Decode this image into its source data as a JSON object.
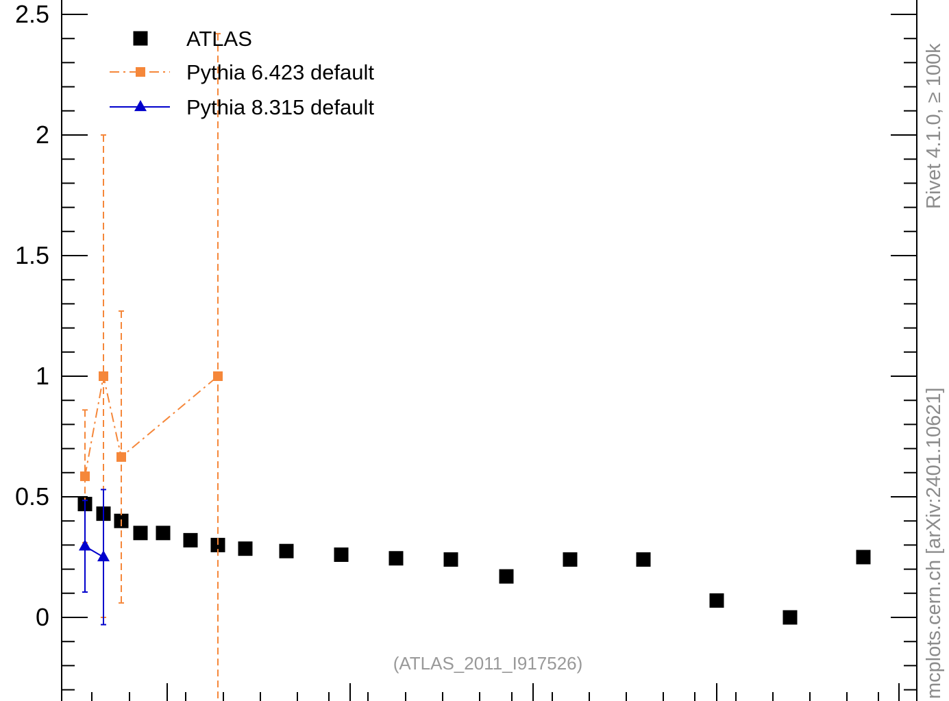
{
  "chart_data": {
    "type": "scatter",
    "title": "",
    "xlabel": "",
    "ylabel": "",
    "ylim": [
      -0.3,
      2.55
    ],
    "y_ticks": [
      0,
      0.5,
      1,
      1.5,
      2,
      2.5
    ],
    "y_tick_labels": [
      "0",
      "0.5",
      "1",
      "1.5",
      "2",
      "2.5"
    ],
    "grid": false,
    "legend_position": "top-left",
    "series": [
      {
        "name": "ATLAS",
        "marker": "square",
        "color": "#000000",
        "line": "none",
        "x": [
          1,
          2,
          3,
          4,
          5,
          6,
          7,
          8,
          9,
          10,
          11,
          12,
          13,
          14,
          15,
          16,
          17,
          18
        ],
        "y": [
          0.47,
          0.43,
          0.4,
          0.35,
          0.35,
          0.32,
          0.3,
          0.285,
          0.275,
          0.26,
          0.245,
          0.24,
          0.17,
          0.24,
          0.24,
          0.07,
          0.0,
          0.25
        ]
      },
      {
        "name": "Pythia 6.423 default",
        "marker": "square",
        "color": "#f5873a",
        "line": "dash-dot",
        "x": [
          1,
          2,
          3,
          7
        ],
        "y": [
          0.585,
          1.0,
          0.665,
          1.0
        ],
        "y_err": [
          0.275,
          1.0,
          0.605,
          1.42
        ]
      },
      {
        "name": "Pythia 8.315 default",
        "marker": "triangle",
        "color": "#0000cc",
        "line": "solid",
        "x": [
          1,
          2
        ],
        "y": [
          0.295,
          0.25
        ],
        "y_err": [
          0.19,
          0.28
        ]
      }
    ]
  },
  "annotations": {
    "analysis_id": "(ATLAS_2011_I917526)",
    "rivet_label": "Rivet 4.1.0, ≥ 100k",
    "mcplots_label": "mcplots.cern.ch [arXiv:2401.10621]"
  }
}
